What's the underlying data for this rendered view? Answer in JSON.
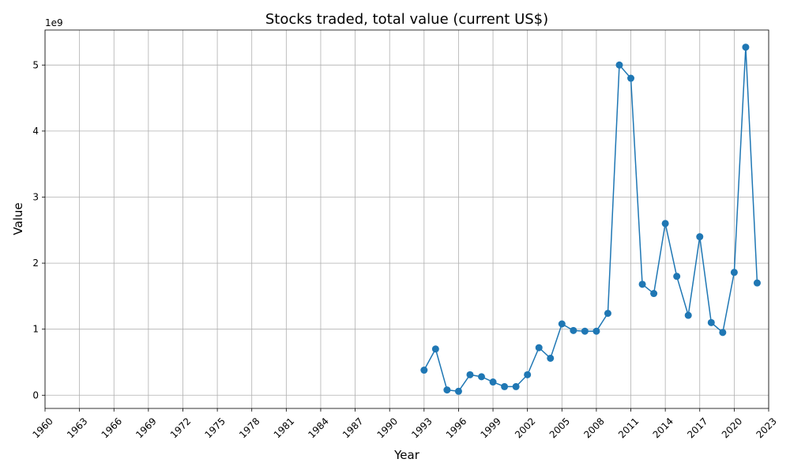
{
  "chart_data": {
    "type": "line",
    "title": "Stocks traded, total value (current US$)",
    "xlabel": "Year",
    "ylabel": "Value",
    "y_multiplier": "1e9",
    "xlim": [
      1960,
      2023
    ],
    "ylim": [
      -0.2,
      5.53
    ],
    "x_ticks": [
      1960,
      1963,
      1966,
      1969,
      1972,
      1975,
      1978,
      1981,
      1984,
      1987,
      1990,
      1993,
      1996,
      1999,
      2002,
      2005,
      2008,
      2011,
      2014,
      2017,
      2020,
      2023
    ],
    "y_ticks": [
      0,
      1,
      2,
      3,
      4,
      5
    ],
    "grid": true,
    "series": [
      {
        "color": "#1f77b4",
        "x": [
          1993,
          1994,
          1995,
          1996,
          1997,
          1998,
          1999,
          2000,
          2001,
          2002,
          2003,
          2004,
          2005,
          2006,
          2007,
          2008,
          2009,
          2010,
          2011,
          2012,
          2013,
          2014,
          2015,
          2016,
          2017,
          2018,
          2019,
          2020,
          2021,
          2022
        ],
        "values": [
          0.38,
          0.7,
          0.08,
          0.06,
          0.31,
          0.28,
          0.2,
          0.13,
          0.13,
          0.31,
          0.72,
          0.56,
          1.08,
          0.98,
          0.97,
          0.97,
          1.24,
          5.0,
          4.8,
          1.68,
          1.54,
          2.6,
          1.8,
          1.21,
          2.4,
          1.1,
          0.95,
          1.86,
          5.27,
          1.7
        ]
      }
    ]
  }
}
